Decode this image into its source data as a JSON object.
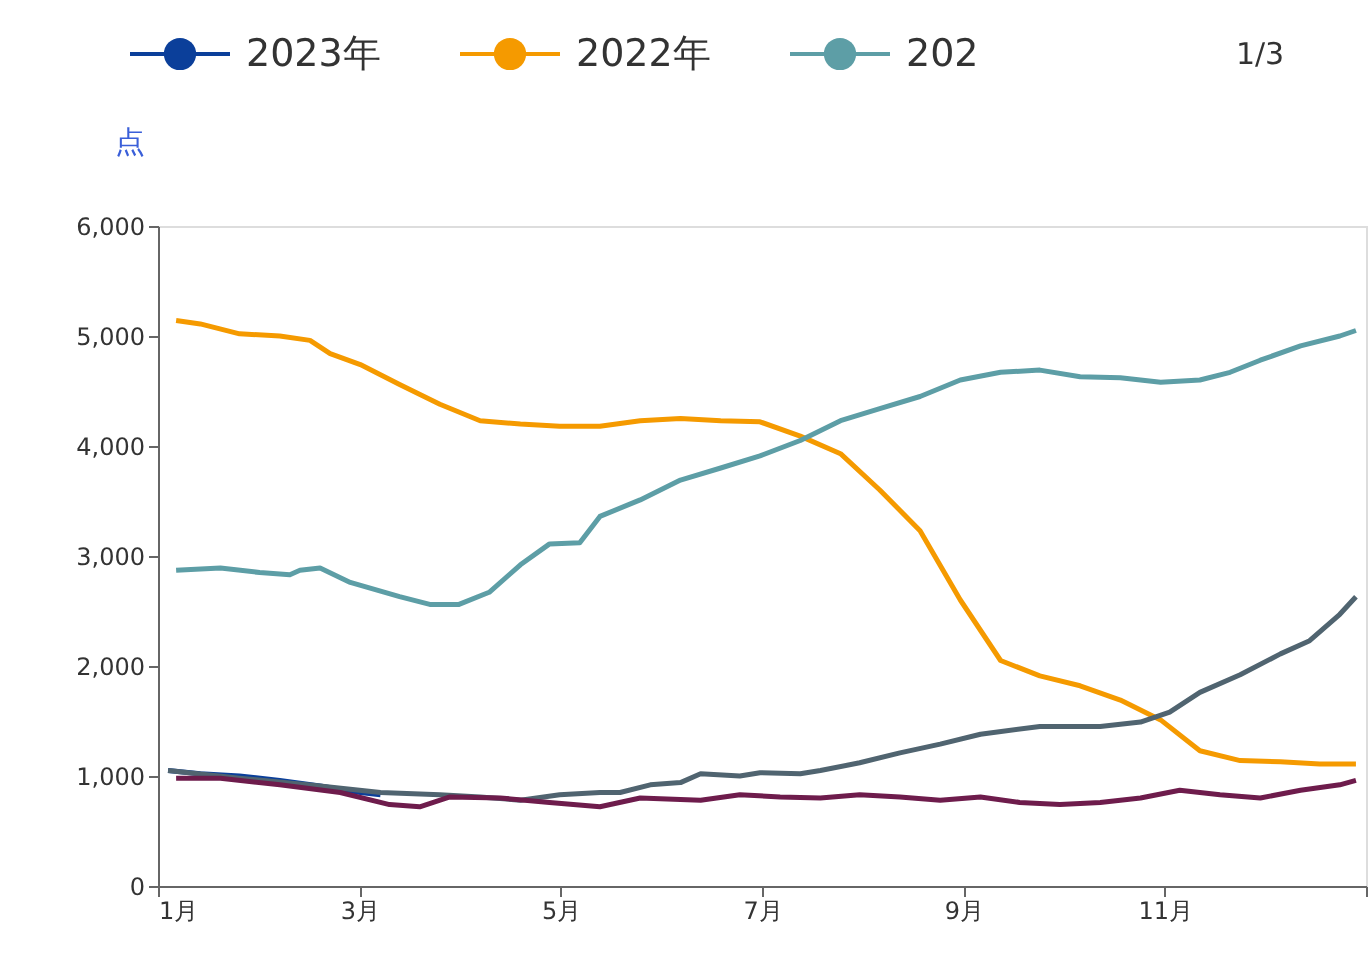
{
  "chart_data": {
    "type": "line",
    "ylabel": "点",
    "legend": "top",
    "grid": false,
    "marker": "none",
    "line_style": "solid",
    "xlim": [
      1,
      13
    ],
    "xticks": [
      {
        "value": 1,
        "label": "1月"
      },
      {
        "value": 3,
        "label": "3月"
      },
      {
        "value": 5,
        "label": "5月"
      },
      {
        "value": 7,
        "label": "7月"
      },
      {
        "value": 9,
        "label": "9月"
      },
      {
        "value": 11,
        "label": "11月"
      },
      {
        "value": 13,
        "label": null
      }
    ],
    "ylim": [
      0,
      6000
    ],
    "yticks": [
      0,
      {
        "value": 1000,
        "label": "1,000"
      },
      {
        "value": 2000,
        "label": "2,000"
      },
      {
        "value": 3000,
        "label": "3,000"
      },
      {
        "value": 4000,
        "label": "4,000"
      },
      {
        "value": 5000,
        "label": "5,000"
      },
      {
        "value": 6000,
        "label": "6,000"
      }
    ],
    "annotations": [
      "1/3"
    ],
    "series": [
      {
        "name": "2023年",
        "color": "#0b3f9a",
        "x": [
          1.1,
          1.42,
          1.81,
          2.21,
          2.61,
          3.01,
          3.21
        ],
        "values": [
          1050,
          1020,
          1000,
          960,
          910,
          850,
          830
        ]
      },
      {
        "name": "2022年",
        "color": "#f59a00",
        "x": [
          1.18,
          1.42,
          1.81,
          2.21,
          2.51,
          2.71,
          3.01,
          3.4,
          3.8,
          4.2,
          4.6,
          4.99,
          5.39,
          5.79,
          6.19,
          6.59,
          6.98,
          7.38,
          7.78,
          8.17,
          8.57,
          8.97,
          9.37,
          9.76,
          10.16,
          10.56,
          10.96,
          11.35,
          11.75,
          12.15,
          12.54,
          12.9
        ],
        "values": [
          5140,
          5110,
          5020,
          5000,
          4960,
          4840,
          4740,
          4560,
          4380,
          4230,
          4200,
          4180,
          4180,
          4230,
          4250,
          4230,
          4220,
          4090,
          3930,
          3600,
          3230,
          2600,
          2050,
          1910,
          1820,
          1690,
          1510,
          1230,
          1140,
          1130,
          1110,
          1110
        ]
      },
      {
        "name": "202",
        "color": "#5d9ea6",
        "x": [
          1.18,
          1.62,
          2.01,
          2.31,
          2.41,
          2.61,
          2.91,
          3.4,
          3.7,
          3.99,
          4.29,
          4.6,
          4.89,
          5.19,
          5.39,
          5.79,
          6.19,
          6.59,
          6.98,
          7.38,
          7.78,
          8.17,
          8.57,
          8.97,
          9.37,
          9.76,
          10.16,
          10.56,
          10.96,
          11.35,
          11.65,
          11.95,
          12.35,
          12.74,
          12.9
        ],
        "values": [
          2870,
          2890,
          2850,
          2830,
          2870,
          2890,
          2760,
          2630,
          2560,
          2560,
          2670,
          2920,
          3110,
          3120,
          3360,
          3510,
          3690,
          3800,
          3910,
          4050,
          4230,
          4340,
          4450,
          4600,
          4670,
          4690,
          4630,
          4620,
          4580,
          4600,
          4670,
          4780,
          4910,
          5000,
          5050
        ]
      },
      {
        "color": "#506470",
        "x": [
          1.1,
          1.81,
          2.61,
          3.21,
          3.8,
          4.2,
          4.6,
          4.99,
          5.39,
          5.59,
          5.89,
          6.19,
          6.39,
          6.78,
          6.98,
          7.38,
          7.58,
          7.97,
          8.37,
          8.77,
          9.17,
          9.76,
          10.36,
          10.76,
          11.05,
          11.35,
          11.75,
          12.15,
          12.44,
          12.74,
          12.9
        ],
        "values": [
          1050,
          980,
          910,
          850,
          830,
          810,
          780,
          830,
          850,
          850,
          920,
          940,
          1020,
          1000,
          1030,
          1020,
          1050,
          1120,
          1210,
          1290,
          1380,
          1450,
          1450,
          1490,
          1580,
          1760,
          1920,
          2110,
          2230,
          2470,
          2630
        ]
      },
      {
        "color": "#6e1c4c",
        "x": [
          1.18,
          1.62,
          2.21,
          2.81,
          3.3,
          3.6,
          3.9,
          4.4,
          4.89,
          5.39,
          5.79,
          6.39,
          6.78,
          7.18,
          7.58,
          7.97,
          8.37,
          8.77,
          9.17,
          9.56,
          9.96,
          10.36,
          10.76,
          11.15,
          11.55,
          11.95,
          12.35,
          12.74,
          12.9
        ],
        "values": [
          980,
          980,
          920,
          850,
          740,
          720,
          810,
          800,
          760,
          720,
          800,
          780,
          830,
          810,
          800,
          830,
          810,
          780,
          810,
          760,
          740,
          760,
          800,
          870,
          830,
          800,
          870,
          920,
          960
        ]
      }
    ]
  }
}
